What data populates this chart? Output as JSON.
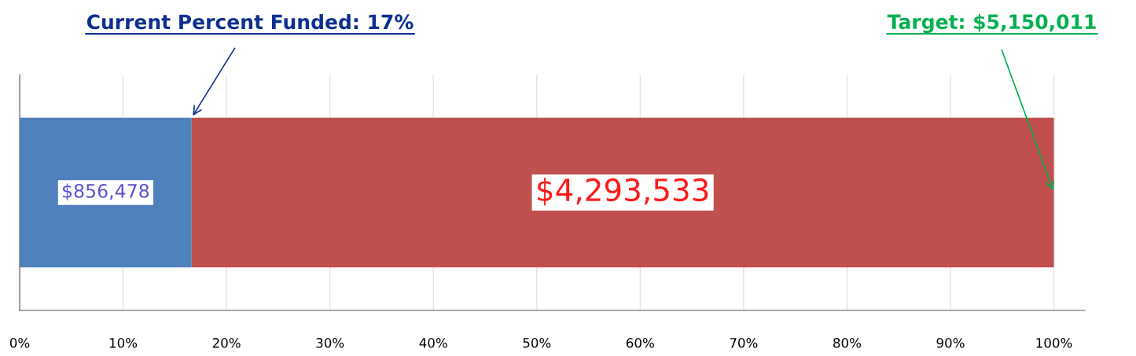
{
  "chart_data": {
    "type": "bar",
    "orientation": "horizontal",
    "stacked": true,
    "categories": [
      null
    ],
    "series": [
      {
        "color": "#4f81bd",
        "values": [
          16.63
        ]
      },
      {
        "color": "#c0504d",
        "values": [
          83.37
        ]
      }
    ],
    "xlim": [
      0,
      103
    ],
    "xticks": [
      {
        "value": 0,
        "label": "0%"
      },
      {
        "value": 10,
        "label": "10%"
      },
      {
        "value": 20,
        "label": "20%"
      },
      {
        "value": 30,
        "label": "30%"
      },
      {
        "value": 40,
        "label": "40%"
      },
      {
        "value": 50,
        "label": "50%"
      },
      {
        "value": 60,
        "label": "60%"
      },
      {
        "value": 70,
        "label": "70%"
      },
      {
        "value": 80,
        "label": "80%"
      },
      {
        "value": 90,
        "label": "90%"
      },
      {
        "value": 100,
        "label": "100%"
      }
    ],
    "grid": "x",
    "annotations": [
      "Current Percent Funded: 17%",
      {
        "text": "Target: $5,150,011",
        "x": 100
      },
      "$856,478",
      "$4,293,533"
    ]
  }
}
